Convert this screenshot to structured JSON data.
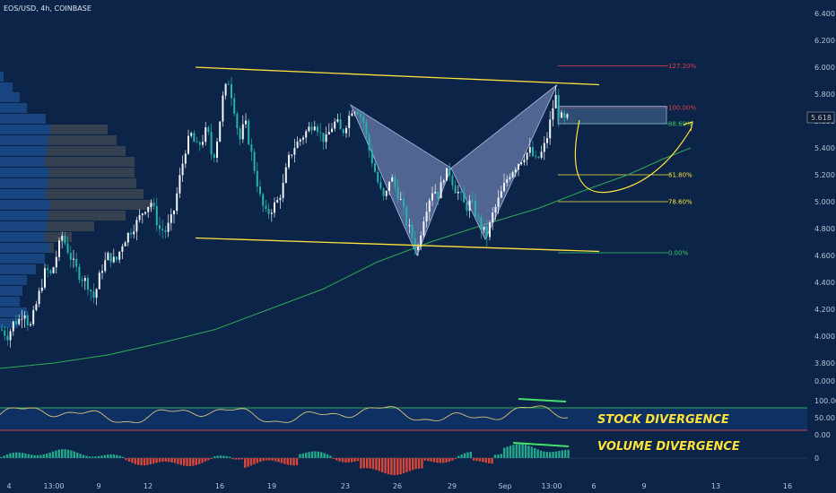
{
  "chart_data": {
    "type": "candlestick",
    "title": "EOS/USD, 4h, COINBASE",
    "price_axis": {
      "ticks": [
        "6.400",
        "6.200",
        "6.000",
        "5.800",
        "5.600",
        "5.400",
        "5.200",
        "5.000",
        "4.800",
        "4.600",
        "4.400",
        "4.200",
        "4.000",
        "3.800",
        "0.000"
      ],
      "tick_values": [
        6.4,
        6.2,
        6.0,
        5.8,
        5.6,
        5.4,
        5.2,
        5.0,
        4.8,
        4.6,
        4.4,
        4.2,
        4.0,
        3.8
      ],
      "range": [
        3.72,
        6.47
      ],
      "last_price": "5.618"
    },
    "time_axis": {
      "labels": [
        "4",
        "13:00",
        "9",
        "12",
        "16",
        "19",
        "23",
        "26",
        "29",
        "Sep",
        "13:00",
        "6",
        "9",
        "13",
        "16"
      ]
    },
    "candles_ohlc_anchor_path": [
      [
        0,
        4.05
      ],
      [
        8,
        4.0
      ],
      [
        14,
        4.1
      ],
      [
        20,
        4.12
      ],
      [
        26,
        4.2
      ],
      [
        32,
        4.05
      ],
      [
        38,
        4.2
      ],
      [
        44,
        4.35
      ],
      [
        50,
        4.5
      ],
      [
        56,
        4.45
      ],
      [
        62,
        4.6
      ],
      [
        68,
        4.75
      ],
      [
        74,
        4.65
      ],
      [
        80,
        4.55
      ],
      [
        88,
        4.45
      ],
      [
        96,
        4.4
      ],
      [
        104,
        4.28
      ],
      [
        112,
        4.5
      ],
      [
        120,
        4.6
      ],
      [
        128,
        4.55
      ],
      [
        136,
        4.7
      ],
      [
        144,
        4.78
      ],
      [
        152,
        4.85
      ],
      [
        160,
        4.95
      ],
      [
        168,
        5.0
      ],
      [
        176,
        4.8
      ],
      [
        184,
        4.78
      ],
      [
        192,
        4.9
      ],
      [
        200,
        5.2
      ],
      [
        206,
        5.4
      ],
      [
        212,
        5.5
      ],
      [
        218,
        5.4
      ],
      [
        224,
        5.45
      ],
      [
        230,
        5.55
      ],
      [
        236,
        5.3
      ],
      [
        242,
        5.5
      ],
      [
        248,
        5.8
      ],
      [
        254,
        5.9
      ],
      [
        260,
        5.7
      ],
      [
        266,
        5.45
      ],
      [
        272,
        5.6
      ],
      [
        278,
        5.4
      ],
      [
        284,
        5.2
      ],
      [
        290,
        5.0
      ],
      [
        296,
        4.9
      ],
      [
        302,
        4.95
      ],
      [
        308,
        5.0
      ],
      [
        314,
        5.1
      ],
      [
        320,
        5.3
      ],
      [
        326,
        5.4
      ],
      [
        332,
        5.45
      ],
      [
        338,
        5.5
      ],
      [
        344,
        5.55
      ],
      [
        350,
        5.6
      ],
      [
        356,
        5.5
      ],
      [
        362,
        5.45
      ],
      [
        368,
        5.55
      ],
      [
        374,
        5.6
      ],
      [
        380,
        5.5
      ],
      [
        386,
        5.6
      ],
      [
        392,
        5.7
      ],
      [
        398,
        5.68
      ],
      [
        404,
        5.6
      ],
      [
        410,
        5.4
      ],
      [
        416,
        5.25
      ],
      [
        422,
        5.1
      ],
      [
        428,
        5.0
      ],
      [
        434,
        5.2
      ],
      [
        440,
        5.1
      ],
      [
        446,
        5.0
      ],
      [
        452,
        4.85
      ],
      [
        458,
        4.75
      ],
      [
        464,
        4.62
      ],
      [
        470,
        4.85
      ],
      [
        476,
        5.0
      ],
      [
        482,
        5.1
      ],
      [
        488,
        5.05
      ],
      [
        494,
        5.2
      ],
      [
        500,
        5.22
      ],
      [
        506,
        5.1
      ],
      [
        512,
        5.05
      ],
      [
        518,
        4.95
      ],
      [
        524,
        5.0
      ],
      [
        530,
        4.9
      ],
      [
        536,
        4.8
      ],
      [
        542,
        4.75
      ],
      [
        548,
        4.9
      ],
      [
        554,
        5.0
      ],
      [
        560,
        5.1
      ],
      [
        566,
        5.2
      ],
      [
        572,
        5.25
      ],
      [
        578,
        5.3
      ],
      [
        584,
        5.35
      ],
      [
        590,
        5.38
      ],
      [
        596,
        5.3
      ],
      [
        602,
        5.35
      ],
      [
        608,
        5.45
      ],
      [
        614,
        5.65
      ],
      [
        618,
        5.8
      ],
      [
        622,
        5.65
      ],
      [
        628,
        5.6
      ],
      [
        632,
        5.62
      ]
    ],
    "moving_average": [
      [
        0,
        3.76
      ],
      [
        60,
        3.8
      ],
      [
        120,
        3.86
      ],
      [
        180,
        3.95
      ],
      [
        240,
        4.05
      ],
      [
        300,
        4.2
      ],
      [
        360,
        4.35
      ],
      [
        420,
        4.55
      ],
      [
        480,
        4.7
      ],
      [
        540,
        4.83
      ],
      [
        600,
        4.95
      ],
      [
        650,
        5.08
      ],
      [
        700,
        5.2
      ],
      [
        740,
        5.32
      ],
      [
        770,
        5.4
      ]
    ],
    "channel": {
      "upper": [
        [
          218,
          6.0
        ],
        [
          668,
          5.87
        ]
      ],
      "lower": [
        [
          218,
          4.73
        ],
        [
          668,
          4.63
        ]
      ]
    },
    "harmonic_pattern": {
      "points": [
        [
          391,
          5.72
        ],
        [
          465,
          4.6
        ],
        [
          503,
          5.25
        ],
        [
          541,
          4.72
        ],
        [
          621,
          5.87
        ]
      ]
    },
    "fibonacci": [
      {
        "label": "127.20%",
        "value": 6.01,
        "color": "#e0404a"
      },
      {
        "label": "100.00%",
        "value": 5.7,
        "color": "#e0404a"
      },
      {
        "label": "88.60%",
        "value": 5.58,
        "color": "#37c96a"
      },
      {
        "label": "61.80%",
        "value": 5.2,
        "color": "#ffe33b"
      },
      {
        "label": "78.60%",
        "value": 5.0,
        "color": "#ffe33b"
      },
      {
        "label": "0.00%",
        "value": 4.62,
        "color": "#37c96a"
      }
    ],
    "prz_box": {
      "top": 5.71,
      "bottom": 5.58
    },
    "stoch_axis": {
      "ticks": [
        "100.00",
        "50.00",
        "0.00"
      ]
    },
    "volume_axis": {
      "ticks": [
        "0"
      ]
    },
    "annotations": [
      {
        "text": "STOCK DIVERGENCE"
      },
      {
        "text": "VOLUME DIVERGENCE"
      }
    ],
    "colors": {
      "background": "#0c2447",
      "up_candle": "#f2f5fa",
      "down_candle": "#24b3ae",
      "channel": "#ffe33b",
      "pattern_fill": "#8b9bd0",
      "ma": "#2eaa55",
      "stoch": "#d4c37a",
      "vol_up": "#21a88c",
      "vol_down": "#d8463a",
      "divergence": "#47e06a",
      "volume_profile_blue": "#1c4d8f",
      "volume_profile_grey": "#3d4654"
    }
  }
}
